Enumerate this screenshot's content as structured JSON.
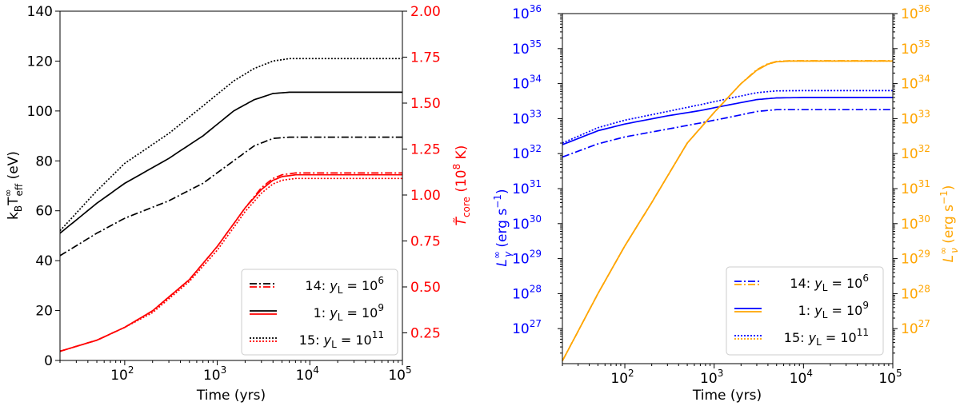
{
  "chart_data": [
    {
      "type": "line",
      "xlabel": "Time (yrs)",
      "ylabel_left": "k_B T_eff^∞ (eV)",
      "ylabel_right": "T̃_core (10^8 K)",
      "xscale": "log",
      "xlim": [
        20,
        100000
      ],
      "ylim_left": [
        0,
        140
      ],
      "ylim_right": [
        0.1,
        2.0
      ],
      "xticks": [
        {
          "value": 100,
          "base": "10",
          "exp": "2"
        },
        {
          "value": 1000,
          "base": "10",
          "exp": "3"
        },
        {
          "value": 10000,
          "base": "10",
          "exp": "4"
        },
        {
          "value": 100000,
          "base": "10",
          "exp": "5"
        }
      ],
      "yticks_left": [
        "0",
        "20",
        "40",
        "60",
        "80",
        "100",
        "120",
        "140"
      ],
      "yticks_right": [
        "0.25",
        "0.50",
        "0.75",
        "1.00",
        "1.25",
        "1.50",
        "1.75",
        "2.00"
      ],
      "colors": {
        "left_axis": "#000000",
        "right_axis": "#ff0000"
      },
      "legend": {
        "placement": "lower-right",
        "entries": [
          {
            "prefix": "14: ",
            "var": "y",
            "sub": "L",
            "eq": " = 10",
            "exp": "6",
            "style": "dashdot"
          },
          {
            "prefix": "1: ",
            "var": "y",
            "sub": "L",
            "eq": " = 10",
            "exp": "9",
            "style": "solid"
          },
          {
            "prefix": "15: ",
            "var": "y",
            "sub": "L",
            "eq": " = 10",
            "exp": "11",
            "style": "dotted"
          }
        ]
      },
      "series": [
        {
          "model": "14",
          "axis": "left",
          "color": "#000000",
          "style": "dashdot",
          "x": [
            20,
            50,
            100,
            300,
            700,
            1500,
            2500,
            4000,
            6000,
            10000,
            100000
          ],
          "y": [
            42,
            51,
            57,
            64,
            71,
            80,
            86,
            89,
            89.5,
            89.5,
            89.5
          ]
        },
        {
          "model": "1",
          "axis": "left",
          "color": "#000000",
          "style": "solid",
          "x": [
            20,
            50,
            100,
            300,
            700,
            1500,
            2500,
            4000,
            6000,
            10000,
            100000
          ],
          "y": [
            51,
            63,
            71,
            81,
            90,
            100,
            104.5,
            107,
            107.5,
            107.5,
            107.5
          ]
        },
        {
          "model": "15",
          "axis": "left",
          "color": "#000000",
          "style": "dotted",
          "x": [
            20,
            50,
            100,
            300,
            700,
            1500,
            2500,
            4000,
            6000,
            10000,
            100000
          ],
          "y": [
            52,
            68,
            79,
            91,
            102,
            112,
            117,
            120,
            121,
            121,
            121
          ]
        },
        {
          "model": "14",
          "axis": "right",
          "color": "#ff0000",
          "style": "dashdot",
          "x": [
            20,
            50,
            100,
            200,
            500,
            1000,
            2000,
            3000,
            4000,
            5000,
            7000,
            10000,
            100000
          ],
          "y": [
            0.15,
            0.21,
            0.28,
            0.37,
            0.54,
            0.72,
            0.93,
            1.04,
            1.09,
            1.11,
            1.12,
            1.12,
            1.12
          ]
        },
        {
          "model": "1",
          "axis": "right",
          "color": "#ff0000",
          "style": "solid",
          "x": [
            20,
            50,
            100,
            200,
            500,
            1000,
            2000,
            3000,
            4000,
            5000,
            7000,
            10000,
            100000
          ],
          "y": [
            0.15,
            0.21,
            0.28,
            0.37,
            0.54,
            0.72,
            0.93,
            1.03,
            1.08,
            1.1,
            1.11,
            1.11,
            1.11
          ]
        },
        {
          "model": "15",
          "axis": "right",
          "color": "#ff0000",
          "style": "dotted",
          "x": [
            20,
            50,
            100,
            200,
            500,
            1000,
            2000,
            3000,
            4000,
            5000,
            7000,
            10000,
            100000
          ],
          "y": [
            0.15,
            0.21,
            0.28,
            0.36,
            0.53,
            0.7,
            0.91,
            1.01,
            1.06,
            1.08,
            1.09,
            1.09,
            1.09
          ]
        }
      ]
    },
    {
      "type": "line",
      "xlabel": "Time (yrs)",
      "ylabel_left": "L_γ^∞ (erg s^−1)",
      "ylabel_right": "L_ν^∞ (erg s^−1)",
      "xscale": "log",
      "yscale": "log",
      "xlim": [
        20,
        100000
      ],
      "ylim": [
        1e+26,
        1e+36
      ],
      "xticks": [
        {
          "value": 100,
          "base": "10",
          "exp": "2"
        },
        {
          "value": 1000,
          "base": "10",
          "exp": "3"
        },
        {
          "value": 10000,
          "base": "10",
          "exp": "4"
        },
        {
          "value": 100000,
          "base": "10",
          "exp": "5"
        }
      ],
      "yticks_left": [
        {
          "value": 27,
          "base": "10",
          "exp": "27"
        },
        {
          "value": 28,
          "base": "10",
          "exp": "28"
        },
        {
          "value": 29,
          "base": "10",
          "exp": "29"
        },
        {
          "value": 30,
          "base": "10",
          "exp": "30"
        },
        {
          "value": 31,
          "base": "10",
          "exp": "31"
        },
        {
          "value": 32,
          "base": "10",
          "exp": "32"
        },
        {
          "value": 33,
          "base": "10",
          "exp": "33"
        },
        {
          "value": 34,
          "base": "10",
          "exp": "34"
        },
        {
          "value": 35,
          "base": "10",
          "exp": "35"
        },
        {
          "value": 36,
          "base": "10",
          "exp": "36"
        }
      ],
      "yticks_right": [
        {
          "value": 27,
          "base": "10",
          "exp": "27"
        },
        {
          "value": 28,
          "base": "10",
          "exp": "28"
        },
        {
          "value": 29,
          "base": "10",
          "exp": "29"
        },
        {
          "value": 30,
          "base": "10",
          "exp": "30"
        },
        {
          "value": 31,
          "base": "10",
          "exp": "31"
        },
        {
          "value": 32,
          "base": "10",
          "exp": "32"
        },
        {
          "value": 33,
          "base": "10",
          "exp": "33"
        },
        {
          "value": 34,
          "base": "10",
          "exp": "34"
        },
        {
          "value": 35,
          "base": "10",
          "exp": "35"
        },
        {
          "value": 36,
          "base": "10",
          "exp": "36"
        }
      ],
      "colors": {
        "left_axis": "#0000ff",
        "right_axis": "#ffa500"
      },
      "legend": {
        "placement": "lower-right",
        "entries": [
          {
            "prefix": "14: ",
            "var": "y",
            "sub": "L",
            "eq": " = 10",
            "exp": "6",
            "style": "dashdot"
          },
          {
            "prefix": "1: ",
            "var": "y",
            "sub": "L",
            "eq": " = 10",
            "exp": "9",
            "style": "solid"
          },
          {
            "prefix": "15: ",
            "var": "y",
            "sub": "L",
            "eq": " = 10",
            "exp": "11",
            "style": "dotted"
          }
        ]
      },
      "series": [
        {
          "model": "14",
          "axis": "left",
          "color": "#0000ff",
          "style": "dashdot",
          "x": [
            20,
            50,
            100,
            300,
            700,
            1500,
            3000,
            5000,
            10000,
            100000
          ],
          "y": [
            8e+31,
            1.9e+32,
            3e+32,
            5e+32,
            7.5e+32,
            1.1e+33,
            1.6e+33,
            1.8e+33,
            1.8e+33,
            1.8e+33
          ]
        },
        {
          "model": "1",
          "axis": "left",
          "color": "#0000ff",
          "style": "solid",
          "x": [
            20,
            50,
            100,
            300,
            700,
            1500,
            3000,
            5000,
            10000,
            100000
          ],
          "y": [
            1.8e+32,
            4.5e+32,
            7e+32,
            1.2e+33,
            1.7e+33,
            2.5e+33,
            3.5e+33,
            3.9e+33,
            4e+33,
            4e+33
          ]
        },
        {
          "model": "15",
          "axis": "left",
          "color": "#0000ff",
          "style": "dotted",
          "x": [
            20,
            50,
            100,
            300,
            700,
            1500,
            3000,
            5000,
            10000,
            100000
          ],
          "y": [
            2e+32,
            5.5e+32,
            9e+32,
            1.6e+33,
            2.5e+33,
            3.8e+33,
            5.5e+33,
            6.2e+33,
            6.3e+33,
            6.3e+33
          ]
        },
        {
          "model": "14",
          "axis": "right",
          "color": "#ffa500",
          "style": "dashdot",
          "x": [
            20,
            50,
            100,
            200,
            500,
            1000,
            2000,
            3000,
            4000,
            5000,
            7000,
            10000,
            100000
          ],
          "y": [
            1.2e+26,
            1e+28,
            2.3e+29,
            4e+30,
            2e+32,
            1.5e+33,
            1e+34,
            2.5e+34,
            3.7e+34,
            4.3e+34,
            4.5e+34,
            4.5e+34,
            4.5e+34
          ]
        },
        {
          "model": "1",
          "axis": "right",
          "color": "#ffa500",
          "style": "solid",
          "x": [
            20,
            50,
            100,
            200,
            500,
            1000,
            2000,
            3000,
            4000,
            5000,
            7000,
            10000,
            100000
          ],
          "y": [
            1.2e+26,
            1e+28,
            2.3e+29,
            4e+30,
            2e+32,
            1.5e+33,
            1e+34,
            2.4e+34,
            3.6e+34,
            4.2e+34,
            4.4e+34,
            4.4e+34,
            4.4e+34
          ]
        },
        {
          "model": "15",
          "axis": "right",
          "color": "#ffa500",
          "style": "dotted",
          "x": [
            20,
            50,
            100,
            200,
            500,
            1000,
            2000,
            3000,
            4000,
            5000,
            7000,
            10000,
            100000
          ],
          "y": [
            1.2e+26,
            1e+28,
            2.3e+29,
            4e+30,
            2e+32,
            1.5e+33,
            1e+34,
            2.4e+34,
            3.6e+34,
            4.2e+34,
            4.4e+34,
            4.4e+34,
            4.4e+34
          ]
        }
      ]
    }
  ]
}
